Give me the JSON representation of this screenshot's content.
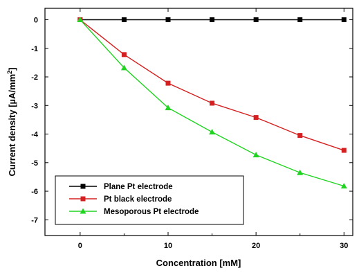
{
  "chart_data": {
    "type": "line",
    "title": "",
    "xlabel": "Concentration [mM]",
    "ylabel": "Current density [µA/mm",
    "ylabel_superscript": "2",
    "ylabel_close": "]",
    "xlim": [
      -4,
      31
    ],
    "ylim": [
      -7.55,
      0.4
    ],
    "x_ticks": [
      0,
      10,
      20,
      30
    ],
    "x_tick_labels": [
      "0",
      "10",
      "20",
      "30"
    ],
    "y_ticks": [
      0,
      -1,
      -2,
      -3,
      -4,
      -5,
      -6,
      -7
    ],
    "y_tick_labels": [
      "0",
      "-1",
      "-2",
      "-3",
      "-4",
      "-5",
      "-6",
      "-7"
    ],
    "grid": false,
    "legend_position": "bottom-left",
    "x": [
      0,
      5,
      10,
      15,
      20,
      25,
      30
    ],
    "series": [
      {
        "name": "Plane Pt electrode",
        "color": "#000000",
        "marker": "square",
        "values": [
          0,
          0,
          0,
          0,
          0,
          0,
          0
        ]
      },
      {
        "name": "Pt black electrode",
        "color": "#d42020",
        "marker": "square",
        "values": [
          0,
          -1.22,
          -2.22,
          -2.92,
          -3.42,
          -4.05,
          -4.57
        ]
      },
      {
        "name": "Mesoporous Pt electrode",
        "color": "#22d422",
        "marker": "triangle",
        "values": [
          0,
          -1.68,
          -3.08,
          -3.93,
          -4.73,
          -5.35,
          -5.82
        ]
      }
    ]
  }
}
